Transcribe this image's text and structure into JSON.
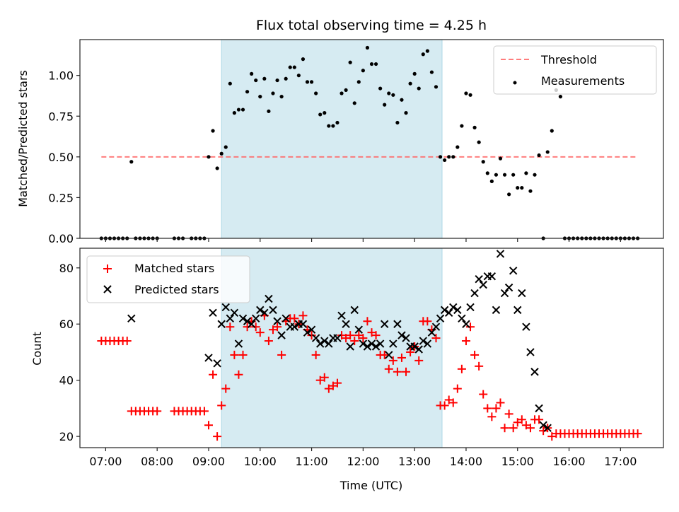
{
  "chart_data": [
    {
      "type": "scatter",
      "title": "Flux total observing time = 4.25 h",
      "xlabel": "",
      "ylabel": "Matched/Predicted stars",
      "ylim": [
        0,
        1.22
      ],
      "yticks": [
        "0.00",
        "0.25",
        "0.50",
        "0.75",
        "1.00"
      ],
      "ytick_values": [
        0,
        0.25,
        0.5,
        0.75,
        1.0
      ],
      "legend_position": "top-right",
      "shaded_interval": {
        "start": "09:15",
        "end": "13:32",
        "color": "#add8e6"
      },
      "threshold": {
        "name": "Threshold",
        "value": 0.5,
        "start": "06:55",
        "end": "17:20",
        "color": "#ff6666",
        "style": "dashed"
      },
      "series": [
        {
          "name": "Measurements",
          "marker": "dot",
          "color": "#000000",
          "values_key": "ratio"
        }
      ],
      "legend": [
        "Threshold",
        "Measurements"
      ]
    },
    {
      "type": "scatter",
      "title": "",
      "xlabel": "Time (UTC)",
      "ylabel": "Count",
      "ylim": [
        16,
        87
      ],
      "yticks": [
        "20",
        "40",
        "60",
        "80"
      ],
      "ytick_values": [
        20,
        40,
        60,
        80
      ],
      "legend_position": "top-left",
      "shaded_interval": {
        "start": "09:15",
        "end": "13:32",
        "color": "#add8e6"
      },
      "series": [
        {
          "name": "Matched stars",
          "marker": "plus",
          "color": "#ff0000",
          "values_key": "matched"
        },
        {
          "name": "Predicted stars",
          "marker": "x",
          "color": "#000000",
          "values_key": "predicted"
        }
      ],
      "legend": [
        "Matched stars",
        "Predicted stars"
      ]
    }
  ],
  "x_axis": {
    "start": "06:55",
    "step_minutes": 5,
    "xlim": [
      "06:30",
      "17:50"
    ],
    "ticks": [
      "07:00",
      "08:00",
      "09:00",
      "10:00",
      "11:00",
      "12:00",
      "13:00",
      "14:00",
      "15:00",
      "16:00",
      "17:00"
    ]
  },
  "series_data": {
    "ratio": [
      0,
      0,
      0,
      0,
      0,
      0,
      0,
      0.47,
      0,
      0,
      0,
      0,
      0,
      0,
      null,
      null,
      null,
      0,
      0,
      0,
      null,
      0,
      0,
      0,
      0,
      0.5,
      0.66,
      0.43,
      0.52,
      0.56,
      0.95,
      0.77,
      0.79,
      0.79,
      0.9,
      1.01,
      0.97,
      0.87,
      0.98,
      0.78,
      0.89,
      0.97,
      0.87,
      0.98,
      1.05,
      1.05,
      1.0,
      1.1,
      0.96,
      0.96,
      0.89,
      0.76,
      0.77,
      0.69,
      0.69,
      0.71,
      0.89,
      0.91,
      1.08,
      0.83,
      0.96,
      1.03,
      1.17,
      1.07,
      1.07,
      0.92,
      0.82,
      0.89,
      0.88,
      0.71,
      0.85,
      0.77,
      0.95,
      1.01,
      0.92,
      1.13,
      1.15,
      1.02,
      0.93,
      0.5,
      0.48,
      0.5,
      0.5,
      0.56,
      0.69,
      0.89,
      0.88,
      0.68,
      0.59,
      0.47,
      0.4,
      0.35,
      0.39,
      0.49,
      0.39,
      0.27,
      0.39,
      0.31,
      0.31,
      0.4,
      0.29,
      0.39,
      0.51,
      0.0,
      0.53,
      0.66,
      0.91,
      0.87,
      0,
      0,
      0,
      0,
      0,
      0,
      0,
      0,
      0,
      0,
      0,
      0,
      0,
      0,
      0,
      0,
      0,
      0
    ],
    "matched": [
      54,
      54,
      54,
      54,
      54,
      54,
      54,
      29,
      29,
      29,
      29,
      29,
      29,
      29,
      null,
      null,
      null,
      29,
      29,
      29,
      29,
      29,
      29,
      29,
      29,
      24,
      42,
      20,
      31,
      37,
      59,
      49,
      42,
      49,
      59,
      61,
      59,
      57,
      63,
      54,
      58,
      59,
      49,
      61,
      62,
      62,
      60,
      63,
      58,
      56,
      49,
      40,
      41,
      37,
      38,
      39,
      56,
      55,
      56,
      54,
      56,
      55,
      61,
      57,
      56,
      49,
      49,
      44,
      47,
      43,
      48,
      43,
      50,
      52,
      47,
      61,
      61,
      58,
      55,
      31,
      31,
      33,
      32,
      37,
      44,
      54,
      59,
      49,
      45,
      35,
      30,
      27,
      30,
      32,
      23,
      28,
      23,
      25,
      26,
      24,
      23,
      26,
      26,
      22,
      23,
      20,
      21,
      21,
      21,
      21,
      21,
      21,
      21,
      21,
      21,
      21,
      21,
      21,
      21,
      21,
      21,
      21,
      21,
      21,
      21,
      21
    ],
    "predicted": [
      null,
      null,
      null,
      null,
      null,
      null,
      null,
      62,
      null,
      null,
      null,
      null,
      null,
      null,
      null,
      null,
      null,
      null,
      null,
      null,
      null,
      null,
      null,
      null,
      null,
      48,
      64,
      46,
      60,
      66,
      62,
      64,
      53,
      62,
      61,
      60,
      62,
      65,
      64,
      69,
      65,
      61,
      56,
      62,
      59,
      59,
      60,
      60,
      57,
      58,
      55,
      53,
      54,
      53,
      55,
      55,
      63,
      60,
      52,
      65,
      58,
      53,
      52,
      53,
      52,
      53,
      60,
      49,
      53,
      60,
      56,
      55,
      52,
      52,
      51,
      54,
      53,
      57,
      59,
      62,
      65,
      64,
      66,
      65,
      62,
      60,
      66,
      71,
      76,
      74,
      77,
      77,
      65,
      85,
      71,
      73,
      79,
      65,
      71,
      59,
      50,
      43,
      30,
      24,
      23,
      null,
      null,
      null,
      null,
      null,
      null,
      null,
      null,
      null,
      null,
      null,
      null,
      null,
      null,
      null,
      null,
      null,
      null,
      null,
      null,
      null
    ]
  }
}
